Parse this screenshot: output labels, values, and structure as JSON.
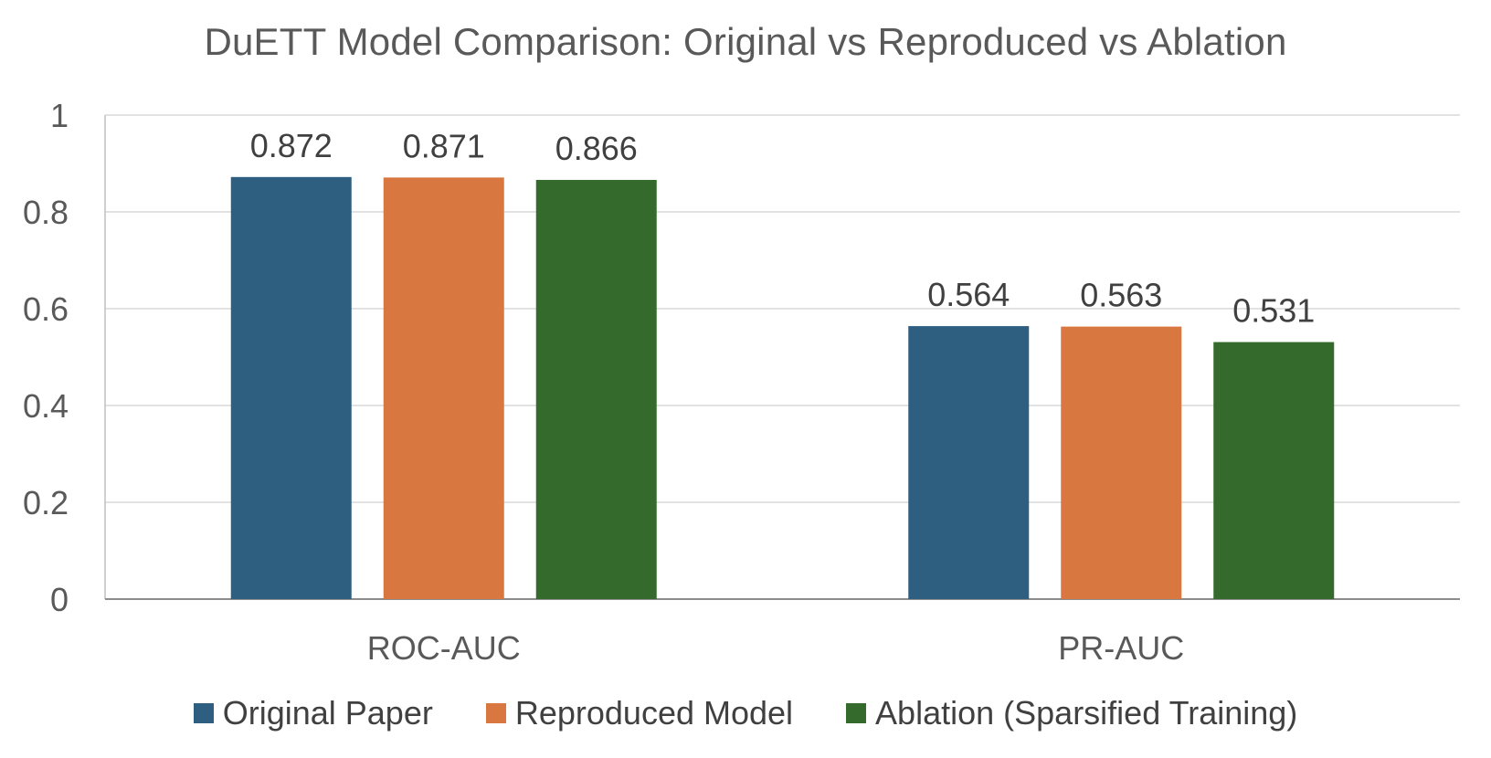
{
  "chart_data": {
    "type": "bar",
    "title": "DuETT Model Comparison: Original vs Reproduced vs Ablation",
    "xlabel": "",
    "ylabel": "",
    "categories": [
      "ROC-AUC",
      "PR-AUC"
    ],
    "series": [
      {
        "name": "Original Paper",
        "values": [
          0.872,
          0.564
        ],
        "color": "#2e5f80"
      },
      {
        "name": "Reproduced Model",
        "values": [
          0.871,
          0.563
        ],
        "color": "#d97741"
      },
      {
        "name": "Ablation (Sparsified Training)",
        "values": [
          0.866,
          0.531
        ],
        "color": "#356a2d"
      }
    ],
    "ylim": [
      0,
      1
    ],
    "yticks": [
      0,
      0.2,
      0.4,
      0.6,
      0.8,
      1
    ],
    "ytick_labels": [
      "0",
      "0.2",
      "0.4",
      "0.6",
      "0.8",
      "1"
    ],
    "data_labels": [
      [
        "0.872",
        "0.564"
      ],
      [
        "0.871",
        "0.563"
      ],
      [
        "0.866",
        "0.531"
      ]
    ],
    "grid": true,
    "legend_position": "bottom"
  }
}
